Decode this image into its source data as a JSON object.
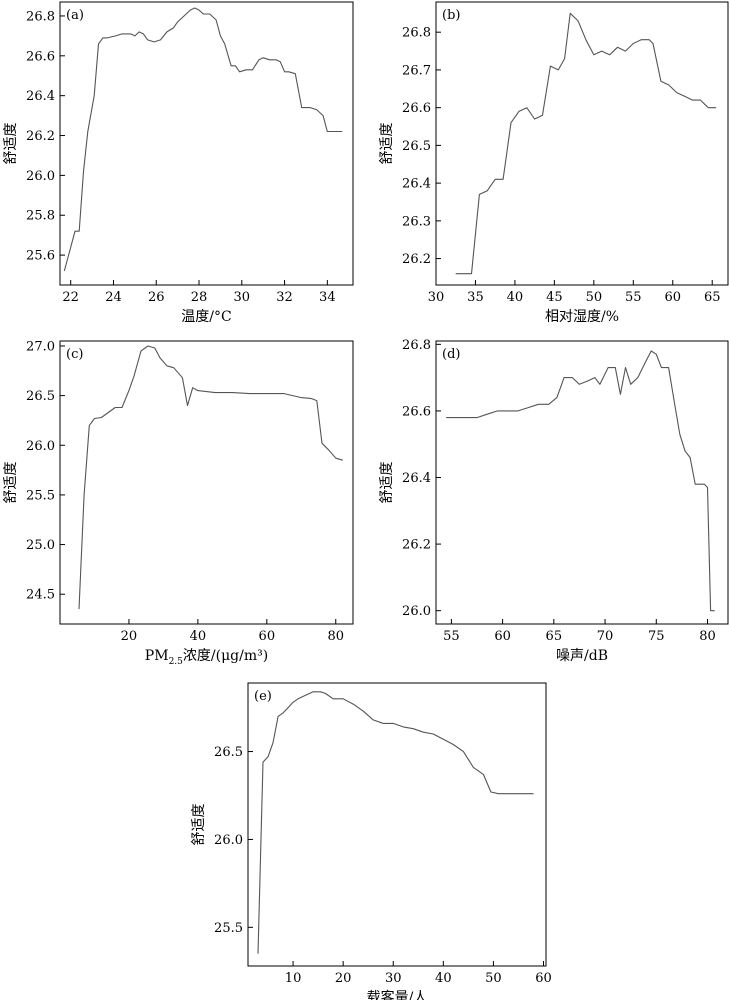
{
  "chart_data": [
    {
      "type": "line",
      "panel_label": "(a)",
      "xlabel": "温度/°C",
      "ylabel": "舒适度",
      "xlim": [
        21.5,
        35.2
      ],
      "ylim": [
        25.45,
        26.87
      ],
      "xticks": [
        22,
        24,
        26,
        28,
        30,
        32,
        34
      ],
      "yticks": [
        25.6,
        25.8,
        26.0,
        26.2,
        26.4,
        26.6,
        26.8
      ],
      "xticklabels": [
        "22",
        "24",
        "26",
        "28",
        "30",
        "32",
        "34"
      ],
      "yticklabels": [
        "25.6",
        "25.8",
        "26.0",
        "26.2",
        "26.4",
        "26.6",
        "26.8"
      ],
      "series": [
        {
          "x": [
            21.7,
            21.9,
            22.2,
            22.4,
            22.6,
            22.8,
            23.1,
            23.3,
            23.5,
            23.7,
            24.1,
            24.4,
            24.8,
            25.0,
            25.2,
            25.4,
            25.6,
            25.9,
            26.2,
            26.5,
            26.8,
            27.0,
            27.3,
            27.6,
            27.8,
            28.0,
            28.2,
            28.5,
            28.8,
            29.0,
            29.2,
            29.5,
            29.7,
            29.9,
            30.2,
            30.5,
            30.8,
            31.0,
            31.3,
            31.6,
            31.8,
            32.0,
            32.2,
            32.5,
            32.8,
            33.0,
            33.2,
            33.5,
            33.8,
            34.0,
            34.3,
            34.5,
            34.7
          ],
          "y": [
            25.52,
            25.6,
            25.72,
            25.72,
            26.02,
            26.22,
            26.4,
            26.66,
            26.69,
            26.69,
            26.7,
            26.71,
            26.71,
            26.7,
            26.72,
            26.71,
            26.68,
            26.67,
            26.68,
            26.72,
            26.74,
            26.77,
            26.8,
            26.83,
            26.84,
            26.83,
            26.81,
            26.81,
            26.78,
            26.7,
            26.66,
            26.55,
            26.55,
            26.52,
            26.53,
            26.53,
            26.58,
            26.59,
            26.58,
            26.58,
            26.57,
            26.52,
            26.52,
            26.51,
            26.34,
            26.34,
            26.34,
            26.33,
            26.3,
            26.22,
            26.22,
            26.22,
            26.22
          ]
        }
      ]
    },
    {
      "type": "line",
      "panel_label": "(b)",
      "xlabel": "相对湿度/%",
      "ylabel": "舒适度",
      "xlim": [
        30,
        67
      ],
      "ylim": [
        26.13,
        26.88
      ],
      "xticks": [
        30,
        35,
        40,
        45,
        50,
        55,
        60,
        65
      ],
      "yticks": [
        26.2,
        26.3,
        26.4,
        26.5,
        26.6,
        26.7,
        26.8
      ],
      "xticklabels": [
        "30",
        "35",
        "40",
        "45",
        "50",
        "55",
        "60",
        "65"
      ],
      "yticklabels": [
        "26.2",
        "26.3",
        "26.4",
        "26.5",
        "26.6",
        "26.7",
        "26.8"
      ],
      "series": [
        {
          "x": [
            32.5,
            33.5,
            34.5,
            35.5,
            36.5,
            37.5,
            38.5,
            39.5,
            40.5,
            41.5,
            42.5,
            43.5,
            44.5,
            45.5,
            46.3,
            47.0,
            48.0,
            49.0,
            50.0,
            51.0,
            52.0,
            53.0,
            54.0,
            55.0,
            56.0,
            57.0,
            57.5,
            58.5,
            59.5,
            60.5,
            61.5,
            62.5,
            63.5,
            64.5,
            65.5
          ],
          "y": [
            26.16,
            26.16,
            26.16,
            26.37,
            26.38,
            26.41,
            26.41,
            26.56,
            26.59,
            26.6,
            26.57,
            26.58,
            26.71,
            26.7,
            26.73,
            26.85,
            26.83,
            26.78,
            26.74,
            26.75,
            26.74,
            26.76,
            26.75,
            26.77,
            26.78,
            26.78,
            26.77,
            26.67,
            26.66,
            26.64,
            26.63,
            26.62,
            26.62,
            26.6,
            26.6
          ]
        }
      ]
    },
    {
      "type": "line",
      "panel_label": "(c)",
      "xlabel": "PM2.5浓度/(μg/m³)",
      "xlabel_prefix": "PM",
      "xlabel_subscript": "2.5",
      "xlabel_suffix": "浓度/(μg/m³)",
      "ylabel": "舒适度",
      "xlim": [
        0,
        85
      ],
      "ylim": [
        24.2,
        27.05
      ],
      "xticks": [
        20,
        40,
        60,
        80
      ],
      "yticks": [
        24.5,
        25.0,
        25.5,
        26.0,
        26.5,
        27.0
      ],
      "xticklabels": [
        "20",
        "40",
        "60",
        "80"
      ],
      "yticklabels": [
        "24.5",
        "25.0",
        "25.5",
        "26.0",
        "26.5",
        "27.0"
      ],
      "series": [
        {
          "x": [
            5.5,
            7.0,
            8.5,
            10.0,
            12.0,
            14.0,
            16.0,
            18.0,
            20.0,
            21.5,
            23.5,
            25.5,
            27.5,
            29.0,
            31.0,
            33.0,
            35.5,
            37.0,
            38.5,
            40.0,
            45.0,
            50.0,
            55.0,
            60.0,
            65.0,
            70.0,
            73.0,
            74.5,
            76.0,
            78.0,
            80.0,
            82.0
          ],
          "y": [
            24.35,
            25.5,
            26.2,
            26.27,
            26.28,
            26.33,
            26.38,
            26.38,
            26.55,
            26.7,
            26.95,
            27.0,
            26.98,
            26.88,
            26.8,
            26.78,
            26.68,
            26.4,
            26.58,
            26.55,
            26.53,
            26.53,
            26.52,
            26.52,
            26.52,
            26.48,
            26.47,
            26.45,
            26.02,
            25.95,
            25.87,
            25.85
          ]
        }
      ]
    },
    {
      "type": "line",
      "panel_label": "(d)",
      "xlabel": "噪声/dB",
      "ylabel": "舒适度",
      "xlim": [
        53.5,
        82.0
      ],
      "ylim": [
        25.96,
        26.81
      ],
      "xticks": [
        55,
        60,
        65,
        70,
        75,
        80
      ],
      "yticks": [
        26.0,
        26.2,
        26.4,
        26.6,
        26.8
      ],
      "xticklabels": [
        "55",
        "60",
        "65",
        "70",
        "75",
        "80"
      ],
      "yticklabels": [
        "26.0",
        "26.2",
        "26.4",
        "26.6",
        "26.8"
      ],
      "series": [
        {
          "x": [
            54.5,
            55.5,
            56.5,
            57.5,
            58.5,
            59.5,
            60.5,
            61.5,
            62.5,
            63.5,
            64.5,
            65.3,
            66.0,
            66.8,
            67.5,
            68.3,
            69.0,
            69.5,
            70.3,
            71.0,
            71.5,
            72.0,
            72.5,
            73.2,
            74.0,
            74.5,
            75.0,
            75.5,
            76.2,
            76.8,
            77.3,
            77.8,
            78.3,
            78.8,
            79.3,
            79.7,
            80.0,
            80.3,
            80.7
          ],
          "y": [
            26.58,
            26.58,
            26.58,
            26.58,
            26.59,
            26.6,
            26.6,
            26.6,
            26.61,
            26.62,
            26.62,
            26.64,
            26.7,
            26.7,
            26.68,
            26.69,
            26.7,
            26.68,
            26.73,
            26.73,
            26.65,
            26.73,
            26.68,
            26.7,
            26.75,
            26.78,
            26.77,
            26.73,
            26.73,
            26.62,
            26.53,
            26.48,
            26.46,
            26.38,
            26.38,
            26.38,
            26.37,
            26.0,
            26.0
          ]
        }
      ]
    },
    {
      "type": "line",
      "panel_label": "(e)",
      "xlabel": "载客量/人",
      "ylabel": "舒适度",
      "xlim": [
        1,
        60.5
      ],
      "ylim": [
        25.28,
        26.89
      ],
      "xticks": [
        10,
        20,
        30,
        40,
        50,
        60
      ],
      "yticks": [
        25.5,
        26.0,
        26.5
      ],
      "xticklabels": [
        "10",
        "20",
        "30",
        "40",
        "50",
        "60"
      ],
      "yticklabels": [
        "25.5",
        "26.0",
        "26.5"
      ],
      "series": [
        {
          "x": [
            3.0,
            4.0,
            5.0,
            6.0,
            7.0,
            8.0,
            9.0,
            10.0,
            11.0,
            12.5,
            14.0,
            15.5,
            16.5,
            18.0,
            20.0,
            22.0,
            24.0,
            26.0,
            28.0,
            30.0,
            32.0,
            34.0,
            36.0,
            38.0,
            40.0,
            42.0,
            44.0,
            46.0,
            48.0,
            49.5,
            51.0,
            53.0,
            56.0,
            58.0
          ],
          "y": [
            25.35,
            26.44,
            26.47,
            26.55,
            26.7,
            26.72,
            26.75,
            26.78,
            26.8,
            26.82,
            26.84,
            26.84,
            26.83,
            26.8,
            26.8,
            26.77,
            26.73,
            26.68,
            26.66,
            26.66,
            26.64,
            26.63,
            26.61,
            26.6,
            26.57,
            26.54,
            26.5,
            26.41,
            26.37,
            26.27,
            26.26,
            26.26,
            26.26,
            26.26
          ]
        }
      ]
    }
  ]
}
